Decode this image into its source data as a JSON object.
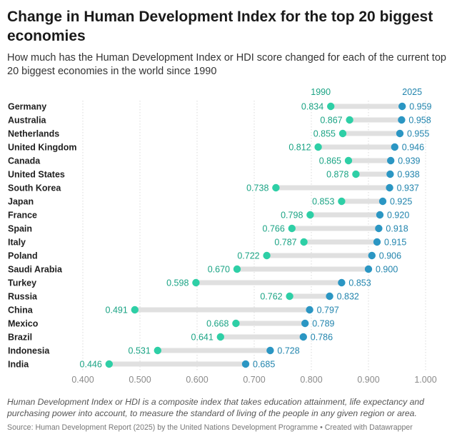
{
  "header": {
    "title": "Change in Human Development Index for the top 20 biggest economies",
    "subtitle": "How much has the Human Development Index or HDI score changed for each of the current top 20 biggest economies in the world since 1990"
  },
  "footer": {
    "note": "Human Development Index or HDI is a composite index that takes education attainment, life expectancy and purchasing power into account, to measure the standard of living of the people in any given region or area.",
    "source": "Source: Human Development Report (2025) by the United Nations Development Programme • Created with Datawrapper"
  },
  "colors": {
    "y1990": "#2ecfa6",
    "y2025": "#2b96c3",
    "connector": "#e0e0e0",
    "grid": "#d9d9d9",
    "label1990": "#1aa384",
    "label2025": "#2184ad"
  },
  "chart_data": {
    "type": "dumbbell",
    "series_labels": [
      "1990",
      "2025"
    ],
    "categories": [
      "Germany",
      "Australia",
      "Netherlands",
      "United Kingdom",
      "Canada",
      "United States",
      "South Korea",
      "Japan",
      "France",
      "Spain",
      "Italy",
      "Poland",
      "Saudi Arabia",
      "Turkey",
      "Russia",
      "China",
      "Mexico",
      "Brazil",
      "Indonesia",
      "India"
    ],
    "series": [
      {
        "name": "1990",
        "values": [
          0.834,
          0.867,
          0.855,
          0.812,
          0.865,
          0.878,
          0.738,
          0.853,
          0.798,
          0.766,
          0.787,
          0.722,
          0.67,
          0.598,
          0.762,
          0.491,
          0.668,
          0.641,
          0.531,
          0.446
        ]
      },
      {
        "name": "2025",
        "values": [
          0.959,
          0.958,
          0.955,
          0.946,
          0.939,
          0.938,
          0.937,
          0.925,
          0.92,
          0.918,
          0.915,
          0.906,
          0.9,
          0.853,
          0.832,
          0.797,
          0.789,
          0.786,
          0.728,
          0.685
        ]
      }
    ],
    "xlim": [
      0.4,
      1.0
    ],
    "xticks": [
      "0.400",
      "0.500",
      "0.600",
      "0.700",
      "0.800",
      "0.900",
      "1.000"
    ],
    "grid": true,
    "legend": "labels above first row"
  }
}
